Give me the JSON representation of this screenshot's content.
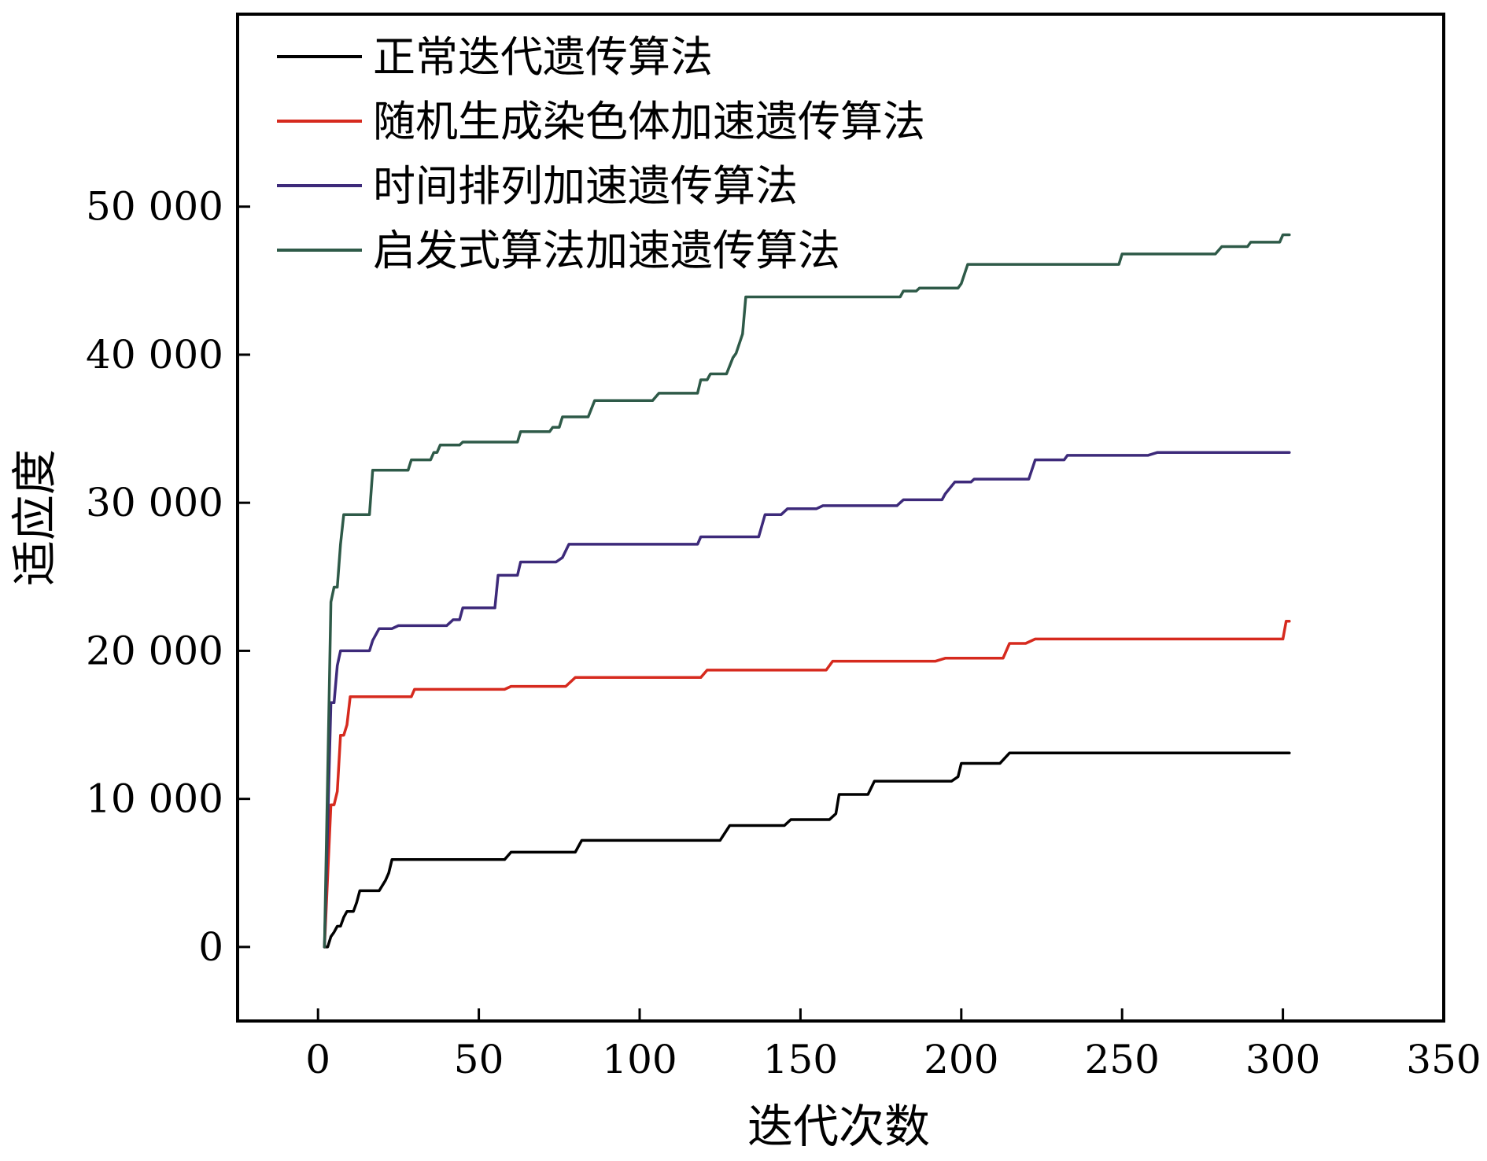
{
  "chart_data": {
    "type": "line",
    "title": "",
    "xlabel": "迭代次数",
    "ylabel": "适应度",
    "xlim": [
      -25,
      350
    ],
    "ylim": [
      -5000,
      63000
    ],
    "x_ticks": [
      0,
      50,
      100,
      150,
      200,
      250,
      300,
      350
    ],
    "x_tick_labels": [
      "0",
      "50",
      "100",
      "150",
      "200",
      "250",
      "300",
      "350"
    ],
    "y_ticks": [
      0,
      10000,
      20000,
      30000,
      40000,
      50000
    ],
    "y_tick_labels": [
      "0",
      "10 000",
      "20 000",
      "30 000",
      "40 000",
      "50 000"
    ],
    "grid": false,
    "legend_position": "top-left",
    "series": [
      {
        "name": "正常迭代遗传算法",
        "color": "#000000",
        "points": [
          [
            2,
            0
          ],
          [
            3,
            0
          ],
          [
            4,
            700
          ],
          [
            5,
            1000
          ],
          [
            6,
            1400
          ],
          [
            7,
            1400
          ],
          [
            8,
            2000
          ],
          [
            9,
            2400
          ],
          [
            11,
            2400
          ],
          [
            12,
            3000
          ],
          [
            13,
            3800
          ],
          [
            19,
            3800
          ],
          [
            21,
            4500
          ],
          [
            22,
            5000
          ],
          [
            23,
            5900
          ],
          [
            58,
            5900
          ],
          [
            60,
            6400
          ],
          [
            80,
            6400
          ],
          [
            82,
            7200
          ],
          [
            125,
            7200
          ],
          [
            128,
            8200
          ],
          [
            145,
            8200
          ],
          [
            147,
            8600
          ],
          [
            159,
            8600
          ],
          [
            160,
            8800
          ],
          [
            161,
            9000
          ],
          [
            162,
            10300
          ],
          [
            171,
            10300
          ],
          [
            173,
            11200
          ],
          [
            197,
            11200
          ],
          [
            199,
            11500
          ],
          [
            200,
            12400
          ],
          [
            212,
            12400
          ],
          [
            215,
            13100
          ],
          [
            302,
            13100
          ]
        ]
      },
      {
        "name": "随机生成染色体加速遗传算法",
        "color": "#d62a1e",
        "points": [
          [
            2,
            0
          ],
          [
            4,
            9600
          ],
          [
            5,
            9600
          ],
          [
            6,
            10500
          ],
          [
            7,
            14300
          ],
          [
            8,
            14300
          ],
          [
            9,
            15000
          ],
          [
            10,
            16900
          ],
          [
            29,
            16900
          ],
          [
            30,
            17400
          ],
          [
            58,
            17400
          ],
          [
            60,
            17600
          ],
          [
            77,
            17600
          ],
          [
            80,
            18200
          ],
          [
            119,
            18200
          ],
          [
            121,
            18700
          ],
          [
            158,
            18700
          ],
          [
            160,
            19300
          ],
          [
            192,
            19300
          ],
          [
            195,
            19500
          ],
          [
            213,
            19500
          ],
          [
            215,
            20500
          ],
          [
            220,
            20500
          ],
          [
            223,
            20800
          ],
          [
            300,
            20800
          ],
          [
            301,
            22000
          ],
          [
            302,
            22000
          ]
        ]
      },
      {
        "name": "时间排列加速遗传算法",
        "color": "#3d2a7a",
        "points": [
          [
            2,
            0
          ],
          [
            4,
            16500
          ],
          [
            5,
            16500
          ],
          [
            6,
            19000
          ],
          [
            7,
            20000
          ],
          [
            16,
            20000
          ],
          [
            17,
            20700
          ],
          [
            19,
            21500
          ],
          [
            23,
            21500
          ],
          [
            25,
            21700
          ],
          [
            40,
            21700
          ],
          [
            42,
            22100
          ],
          [
            44,
            22100
          ],
          [
            45,
            22900
          ],
          [
            55,
            22900
          ],
          [
            56,
            25100
          ],
          [
            62,
            25100
          ],
          [
            63,
            26000
          ],
          [
            74,
            26000
          ],
          [
            76,
            26300
          ],
          [
            78,
            27200
          ],
          [
            118,
            27200
          ],
          [
            119,
            27700
          ],
          [
            137,
            27700
          ],
          [
            139,
            29200
          ],
          [
            144,
            29200
          ],
          [
            146,
            29600
          ],
          [
            155,
            29600
          ],
          [
            157,
            29800
          ],
          [
            180,
            29800
          ],
          [
            182,
            30200
          ],
          [
            194,
            30200
          ],
          [
            195,
            30600
          ],
          [
            198,
            31400
          ],
          [
            203,
            31400
          ],
          [
            204,
            31600
          ],
          [
            221,
            31600
          ],
          [
            223,
            32900
          ],
          [
            232,
            32900
          ],
          [
            233,
            33200
          ],
          [
            258,
            33200
          ],
          [
            261,
            33400
          ],
          [
            302,
            33400
          ]
        ]
      },
      {
        "name": "启发式算法加速遗传算法",
        "color": "#2e5a48",
        "points": [
          [
            2,
            0
          ],
          [
            4,
            23300
          ],
          [
            5,
            24300
          ],
          [
            6,
            24300
          ],
          [
            7,
            27200
          ],
          [
            8,
            29200
          ],
          [
            16,
            29200
          ],
          [
            17,
            32200
          ],
          [
            28,
            32200
          ],
          [
            29,
            32900
          ],
          [
            35,
            32900
          ],
          [
            36,
            33400
          ],
          [
            37,
            33400
          ],
          [
            38,
            33900
          ],
          [
            44,
            33900
          ],
          [
            45,
            34100
          ],
          [
            62,
            34100
          ],
          [
            63,
            34800
          ],
          [
            72,
            34800
          ],
          [
            73,
            35100
          ],
          [
            75,
            35100
          ],
          [
            76,
            35800
          ],
          [
            84,
            35800
          ],
          [
            86,
            36900
          ],
          [
            104,
            36900
          ],
          [
            106,
            37400
          ],
          [
            118,
            37400
          ],
          [
            119,
            38300
          ],
          [
            121,
            38300
          ],
          [
            122,
            38700
          ],
          [
            127,
            38700
          ],
          [
            129,
            39800
          ],
          [
            130,
            40100
          ],
          [
            132,
            41400
          ],
          [
            133,
            43900
          ],
          [
            181,
            43900
          ],
          [
            182,
            44300
          ],
          [
            186,
            44300
          ],
          [
            187,
            44500
          ],
          [
            199,
            44500
          ],
          [
            200,
            44800
          ],
          [
            202,
            46100
          ],
          [
            249,
            46100
          ],
          [
            250,
            46800
          ],
          [
            279,
            46800
          ],
          [
            281,
            47300
          ],
          [
            289,
            47300
          ],
          [
            290,
            47600
          ],
          [
            299,
            47600
          ],
          [
            300,
            48100
          ],
          [
            302,
            48100
          ]
        ]
      }
    ]
  }
}
